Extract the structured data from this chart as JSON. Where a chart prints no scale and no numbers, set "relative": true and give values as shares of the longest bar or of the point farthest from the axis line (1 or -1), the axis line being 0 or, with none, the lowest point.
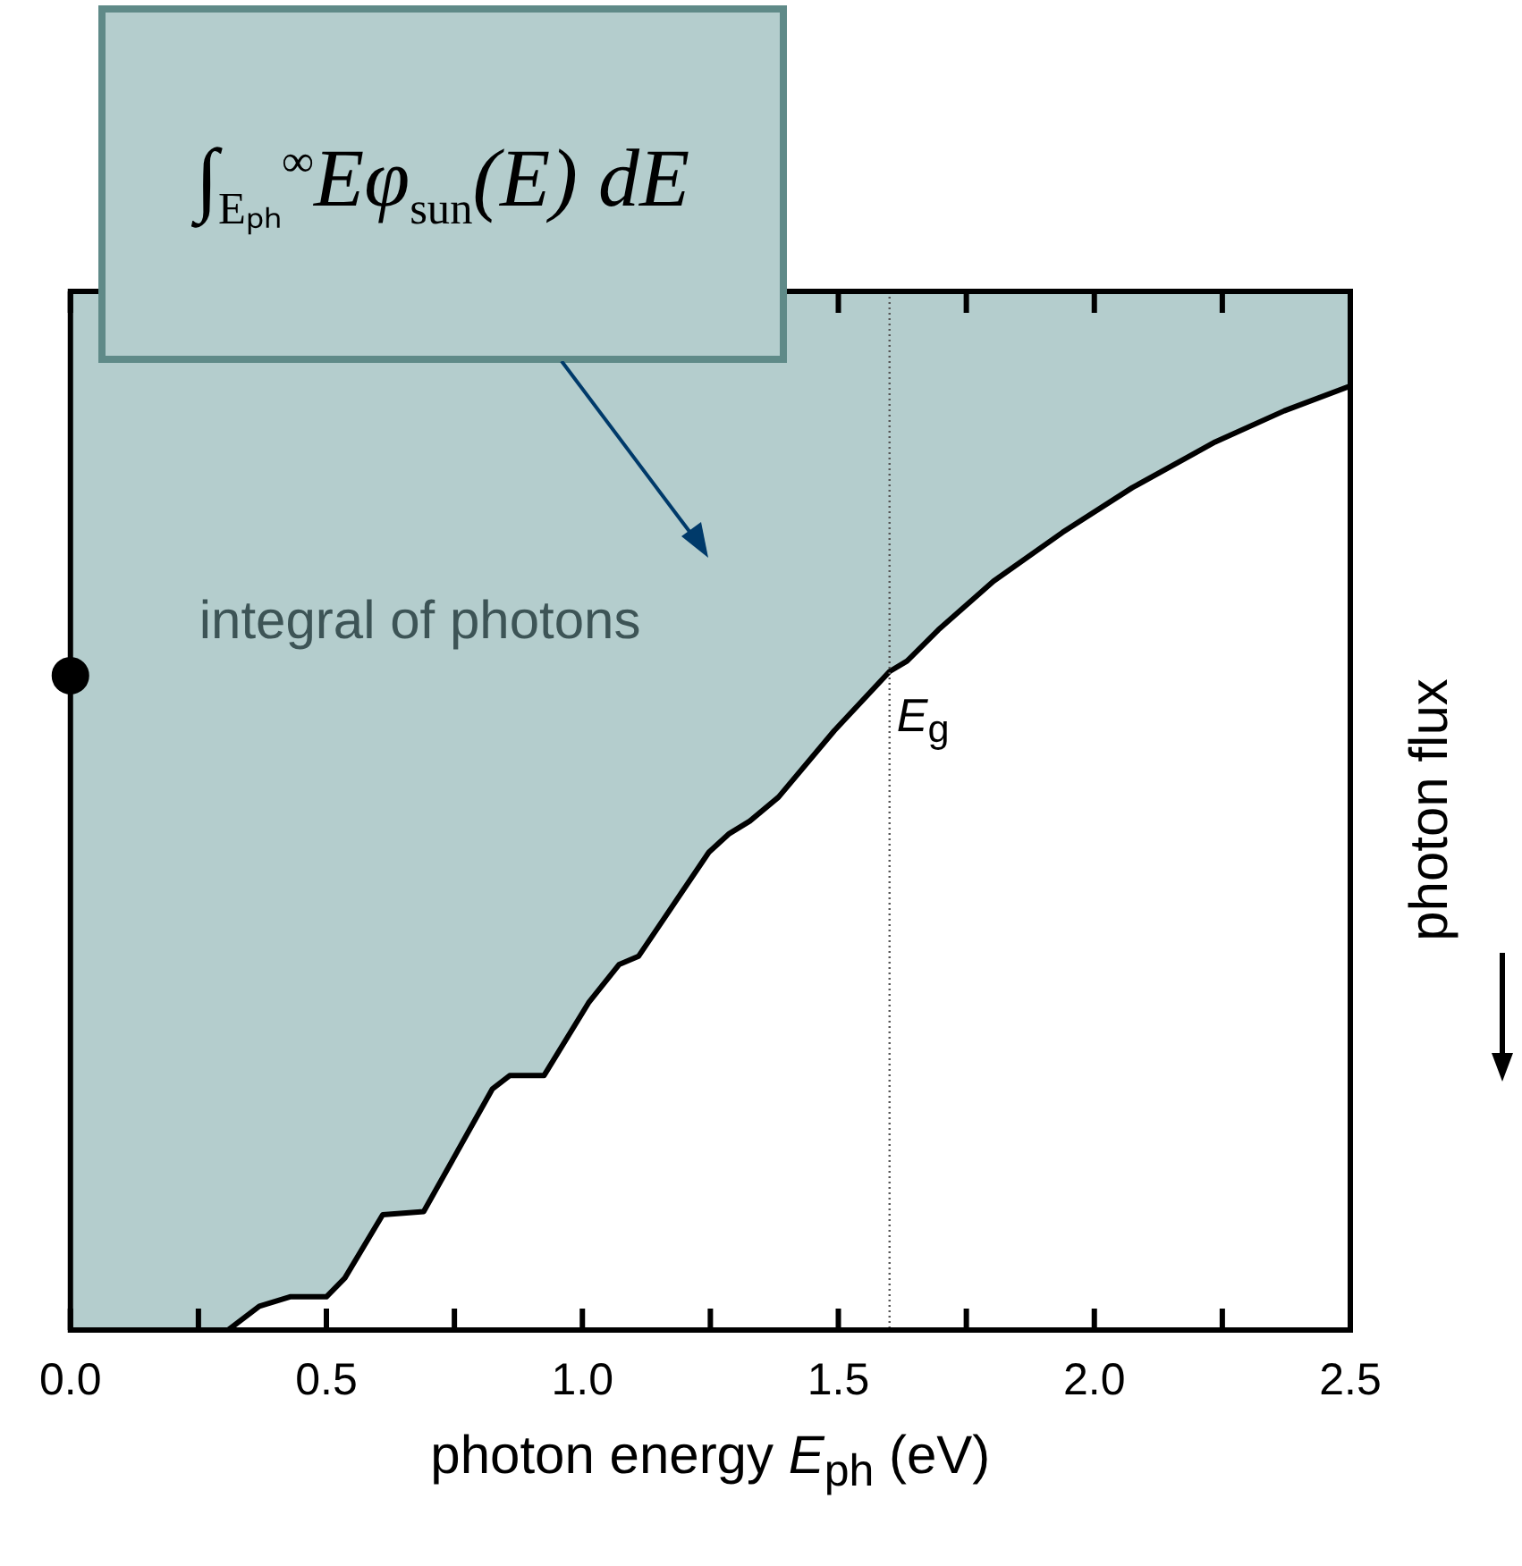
{
  "chart_data": {
    "type": "area",
    "xlabel": "photon energy E$_{ph}$ (eV)",
    "ylabel": "photon flux",
    "relative": true,
    "xlim": [
      0,
      2.5
    ],
    "xticks": [
      {
        "value": 0,
        "label": "0.0"
      },
      {
        "value": 0.25,
        "label": null
      },
      0.5,
      {
        "value": 0.75,
        "label": null
      },
      {
        "value": 1,
        "label": "1.0"
      },
      {
        "value": 1.25,
        "label": null
      },
      1.5,
      {
        "value": 1.75,
        "label": null
      },
      {
        "value": 2,
        "label": "2.0"
      },
      {
        "value": 2.25,
        "label": null
      },
      2.5
    ],
    "grid": false,
    "legend": false,
    "series": [
      {
        "color": "#b4cdcd",
        "x": [
          0,
          0.308,
          0.369,
          0.429,
          0.5,
          0.536,
          0.61,
          0.69,
          0.824,
          0.858,
          0.925,
          1.012,
          1.072,
          1.11,
          1.247,
          1.287,
          1.327,
          1.383,
          1.492,
          1.6,
          1.634,
          1.695,
          1.803,
          1.938,
          2.074,
          2.236,
          2.371,
          2.5
        ],
        "values": [
          -1,
          -1,
          -0.977,
          -0.968,
          -0.968,
          -0.95,
          -0.889,
          -0.886,
          -0.768,
          -0.755,
          -0.755,
          -0.685,
          -0.648,
          -0.64,
          -0.54,
          -0.522,
          -0.51,
          -0.487,
          -0.423,
          -0.366,
          -0.356,
          -0.326,
          -0.279,
          -0.232,
          -0.189,
          -0.145,
          -0.115,
          -0.091
        ]
      },
      {
        "type": "scatter",
        "color": "#000000",
        "marker": "circle",
        "x": [
          0
        ],
        "values": [
          -0.37
        ]
      }
    ],
    "ref_lines": [
      {
        "axis": "x",
        "value": 1.6,
        "label": "E$_{g}$",
        "color": "#555555",
        "line_style": "dotted"
      }
    ],
    "annotations": [
      "∫$_{Eₚₕ}$$^{∞}$Eφ$_{sun}$(E) dE",
      "integral of photons"
    ]
  }
}
